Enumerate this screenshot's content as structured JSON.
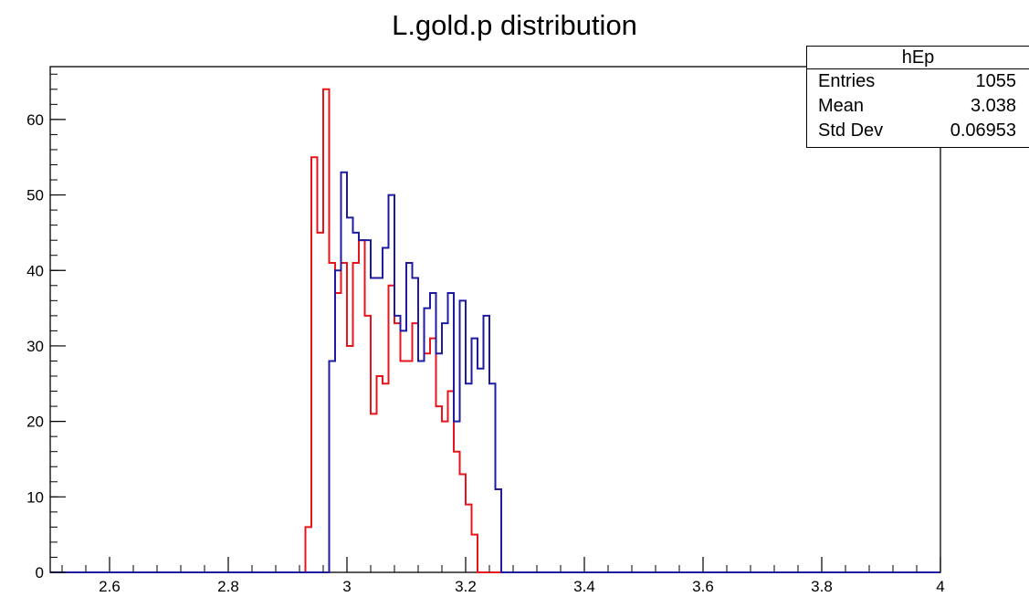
{
  "colors": {
    "red_series": "#e8141b",
    "blue_series": "#1e1ba0",
    "axis": "#000000"
  },
  "chart_data": {
    "type": "bar",
    "title": "L.gold.p distribution",
    "xlim": [
      2.5,
      4.0
    ],
    "ylim": [
      0,
      67
    ],
    "x_ticks": [
      "2.6",
      "2.8",
      "3",
      "3.2",
      "3.4",
      "3.6",
      "3.8",
      "4"
    ],
    "y_ticks": [
      "0",
      "10",
      "20",
      "30",
      "40",
      "50",
      "60"
    ],
    "bin_width": 0.01,
    "grid": false,
    "stats_box": {
      "name": "hEp",
      "rows": [
        {
          "label": "Entries",
          "value": "1055"
        },
        {
          "label": "Mean",
          "value": "3.038"
        },
        {
          "label": "Std Dev",
          "value": "0.06953"
        }
      ]
    },
    "series": [
      {
        "color": "#e8141b",
        "x_start": 2.93,
        "values": [
          6,
          55,
          45,
          64,
          41,
          37,
          41,
          30,
          41,
          44,
          34,
          21,
          26,
          25,
          38,
          33,
          28,
          28,
          33,
          28,
          29,
          31,
          22,
          20,
          24,
          16,
          13,
          9,
          5,
          0
        ]
      },
      {
        "color": "#1e1ba0",
        "x_start": 2.97,
        "values": [
          28,
          40,
          53,
          47,
          45,
          44,
          44,
          39,
          39,
          43,
          50,
          34,
          32,
          41,
          39,
          28,
          35,
          37,
          29,
          33,
          37,
          20,
          36,
          25,
          31,
          27,
          34,
          25,
          11,
          0
        ]
      }
    ]
  }
}
